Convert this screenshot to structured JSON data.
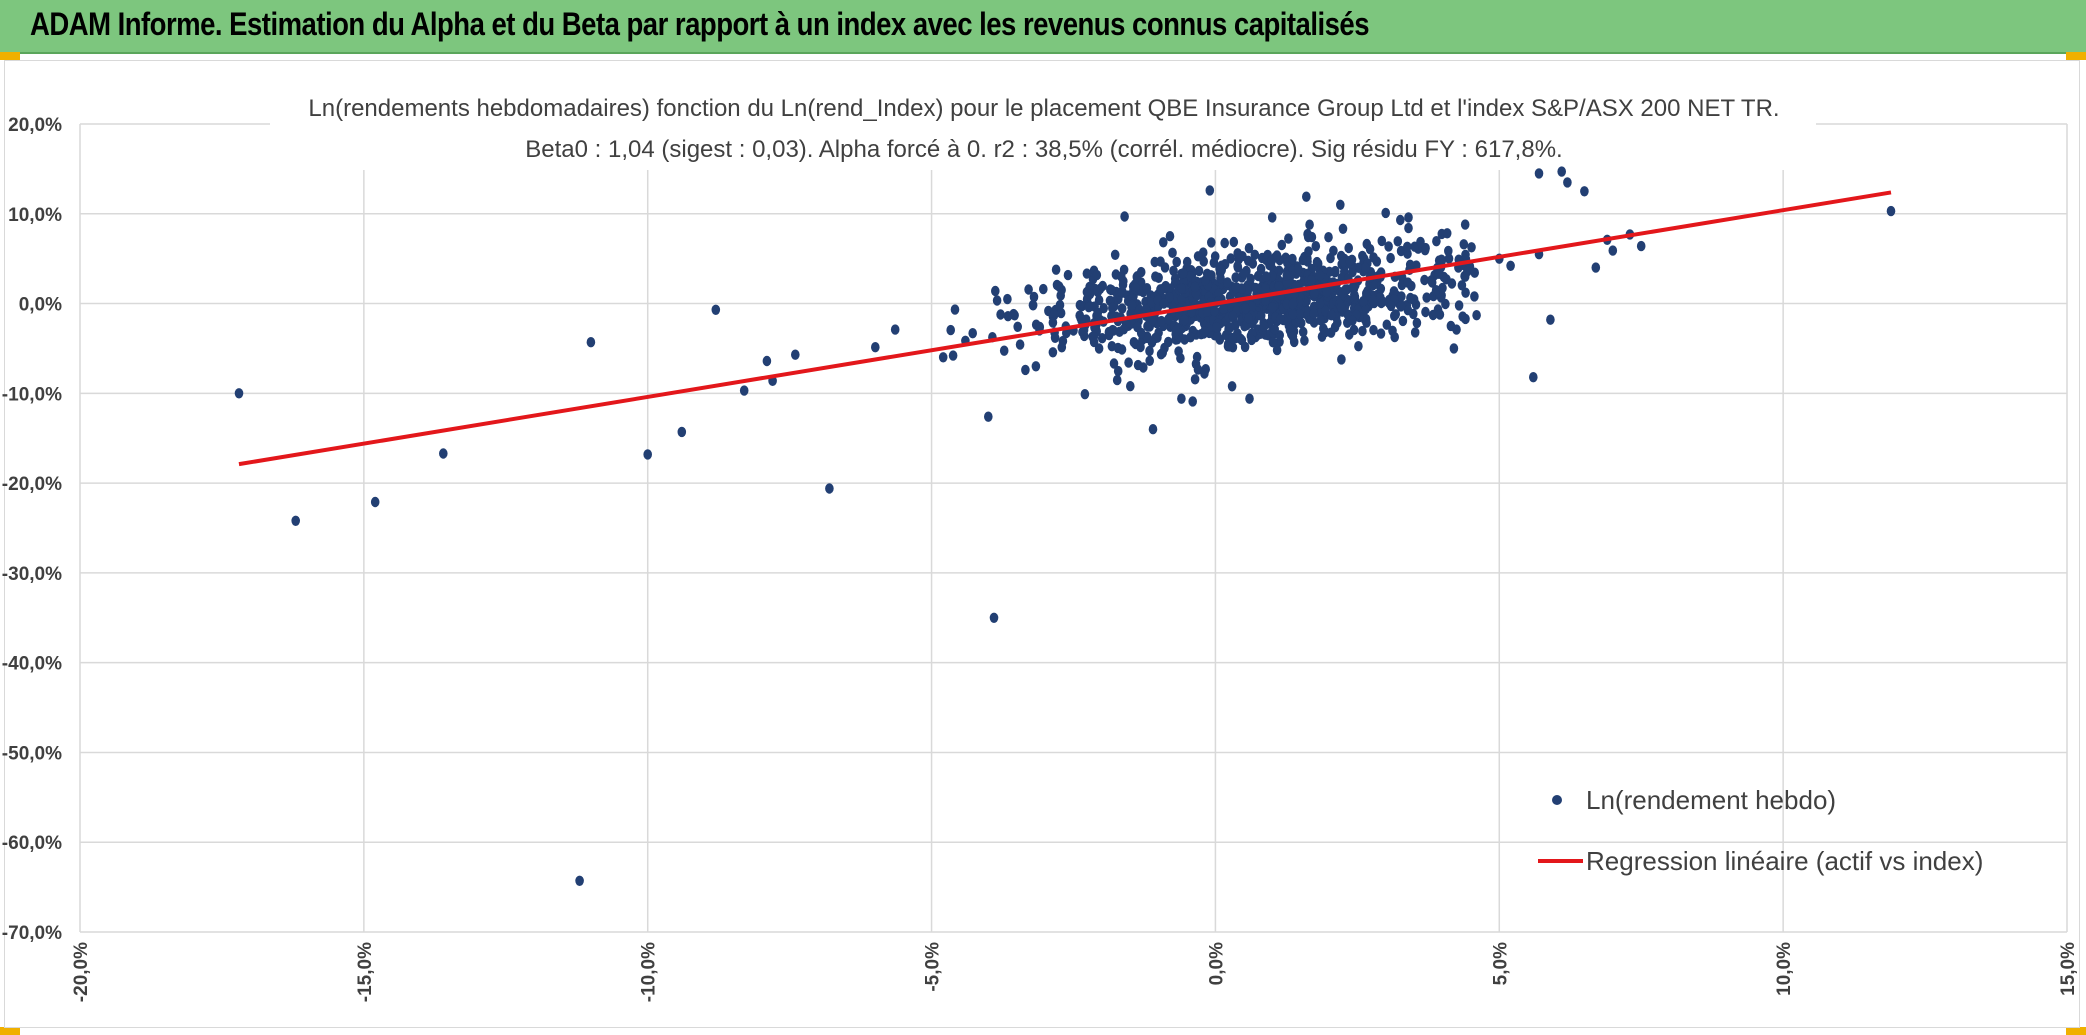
{
  "header": {
    "title": "ADAM Informe. Estimation du Alpha et du Beta par rapport à un index avec les revenus connus capitalisés"
  },
  "colors": {
    "banner": "#7dc67e",
    "points": "#223f73",
    "regression": "#e3171b",
    "grid": "#d9d9d9",
    "text": "#404040"
  },
  "chart_data": {
    "type": "scatter",
    "title_line1": "Ln(rendements hebdomadaires) fonction du Ln(rend_Index) pour le placement QBE Insurance Group Ltd et l'index S&P/ASX 200 NET TR.",
    "title_line2": "Beta0 : 1,04 (sigest : 0,03). Alpha forcé à 0. r2 : 38,5% (corrél. médiocre). Sig résidu FY : 617,8%.",
    "xlim": [
      -20,
      15
    ],
    "ylim": [
      -70,
      20
    ],
    "x_ticks": [
      -20,
      -15,
      -10,
      -5,
      0,
      5,
      10,
      15
    ],
    "y_ticks": [
      20,
      10,
      0,
      -10,
      -20,
      -30,
      -40,
      -50,
      -60,
      -70
    ],
    "x_tick_labels": [
      "-20,0%",
      "-15,0%",
      "-10,0%",
      "-5,0%",
      "0,0%",
      "5,0%",
      "10,0%",
      "15,0%"
    ],
    "y_tick_labels": [
      "20,0%",
      "10,0%",
      "0,0%",
      "-10,0%",
      "-20,0%",
      "-30,0%",
      "-40,0%",
      "-50,0%",
      "-60,0%",
      "-70,0%"
    ],
    "grid": true,
    "legend_position": "bottom-right",
    "series": [
      {
        "name": "Ln(rendement hebdo)",
        "kind": "scatter",
        "outliers": [
          [
            -17.2,
            -10.0
          ],
          [
            -16.2,
            -24.2
          ],
          [
            -14.8,
            -22.1
          ],
          [
            -13.6,
            -16.7
          ],
          [
            -11.2,
            -64.3
          ],
          [
            -11.0,
            -4.3
          ],
          [
            -10.0,
            -16.8
          ],
          [
            -9.4,
            -14.3
          ],
          [
            -8.8,
            -0.7
          ],
          [
            -8.3,
            -9.7
          ],
          [
            -7.9,
            -6.4
          ],
          [
            -7.8,
            -8.6
          ],
          [
            -7.4,
            -5.7
          ],
          [
            -6.8,
            -20.6
          ],
          [
            -4.0,
            -12.6
          ],
          [
            -3.9,
            -35.0
          ],
          [
            -2.3,
            -10.1
          ],
          [
            -1.6,
            9.7
          ],
          [
            -1.5,
            -9.2
          ],
          [
            -1.1,
            -14.0
          ],
          [
            -0.8,
            7.5
          ],
          [
            -0.6,
            -10.6
          ],
          [
            -0.4,
            -10.9
          ],
          [
            -0.1,
            12.6
          ],
          [
            0.6,
            -10.6
          ],
          [
            1.0,
            9.6
          ],
          [
            1.6,
            11.9
          ],
          [
            1.7,
            7.4
          ],
          [
            2.2,
            11.0
          ],
          [
            3.0,
            10.1
          ],
          [
            3.4,
            9.6
          ],
          [
            3.4,
            8.4
          ],
          [
            4.2,
            -5.0
          ],
          [
            4.4,
            8.8
          ],
          [
            4.6,
            -1.3
          ],
          [
            5.0,
            5.0
          ],
          [
            5.2,
            4.2
          ],
          [
            5.6,
            -8.2
          ],
          [
            5.7,
            14.5
          ],
          [
            5.7,
            5.5
          ],
          [
            5.9,
            -1.8
          ],
          [
            6.1,
            14.7
          ],
          [
            6.2,
            13.5
          ],
          [
            6.5,
            12.5
          ],
          [
            6.7,
            4.0
          ],
          [
            6.9,
            7.1
          ],
          [
            7.0,
            5.9
          ],
          [
            7.3,
            7.7
          ],
          [
            7.5,
            6.4
          ],
          [
            11.9,
            10.3
          ]
        ],
        "cloud": {
          "n": 1050,
          "x_mean": 0.6,
          "x_sd": 1.95,
          "beta": 0.6,
          "resid_sd": 2.7,
          "x_min": -6.5,
          "x_max": 4.6
        }
      },
      {
        "name": "Regression linéaire (actif vs index)",
        "kind": "line",
        "slope": 1.04,
        "intercept": 0,
        "x_start": -17.2,
        "x_end": 11.9
      }
    ]
  }
}
